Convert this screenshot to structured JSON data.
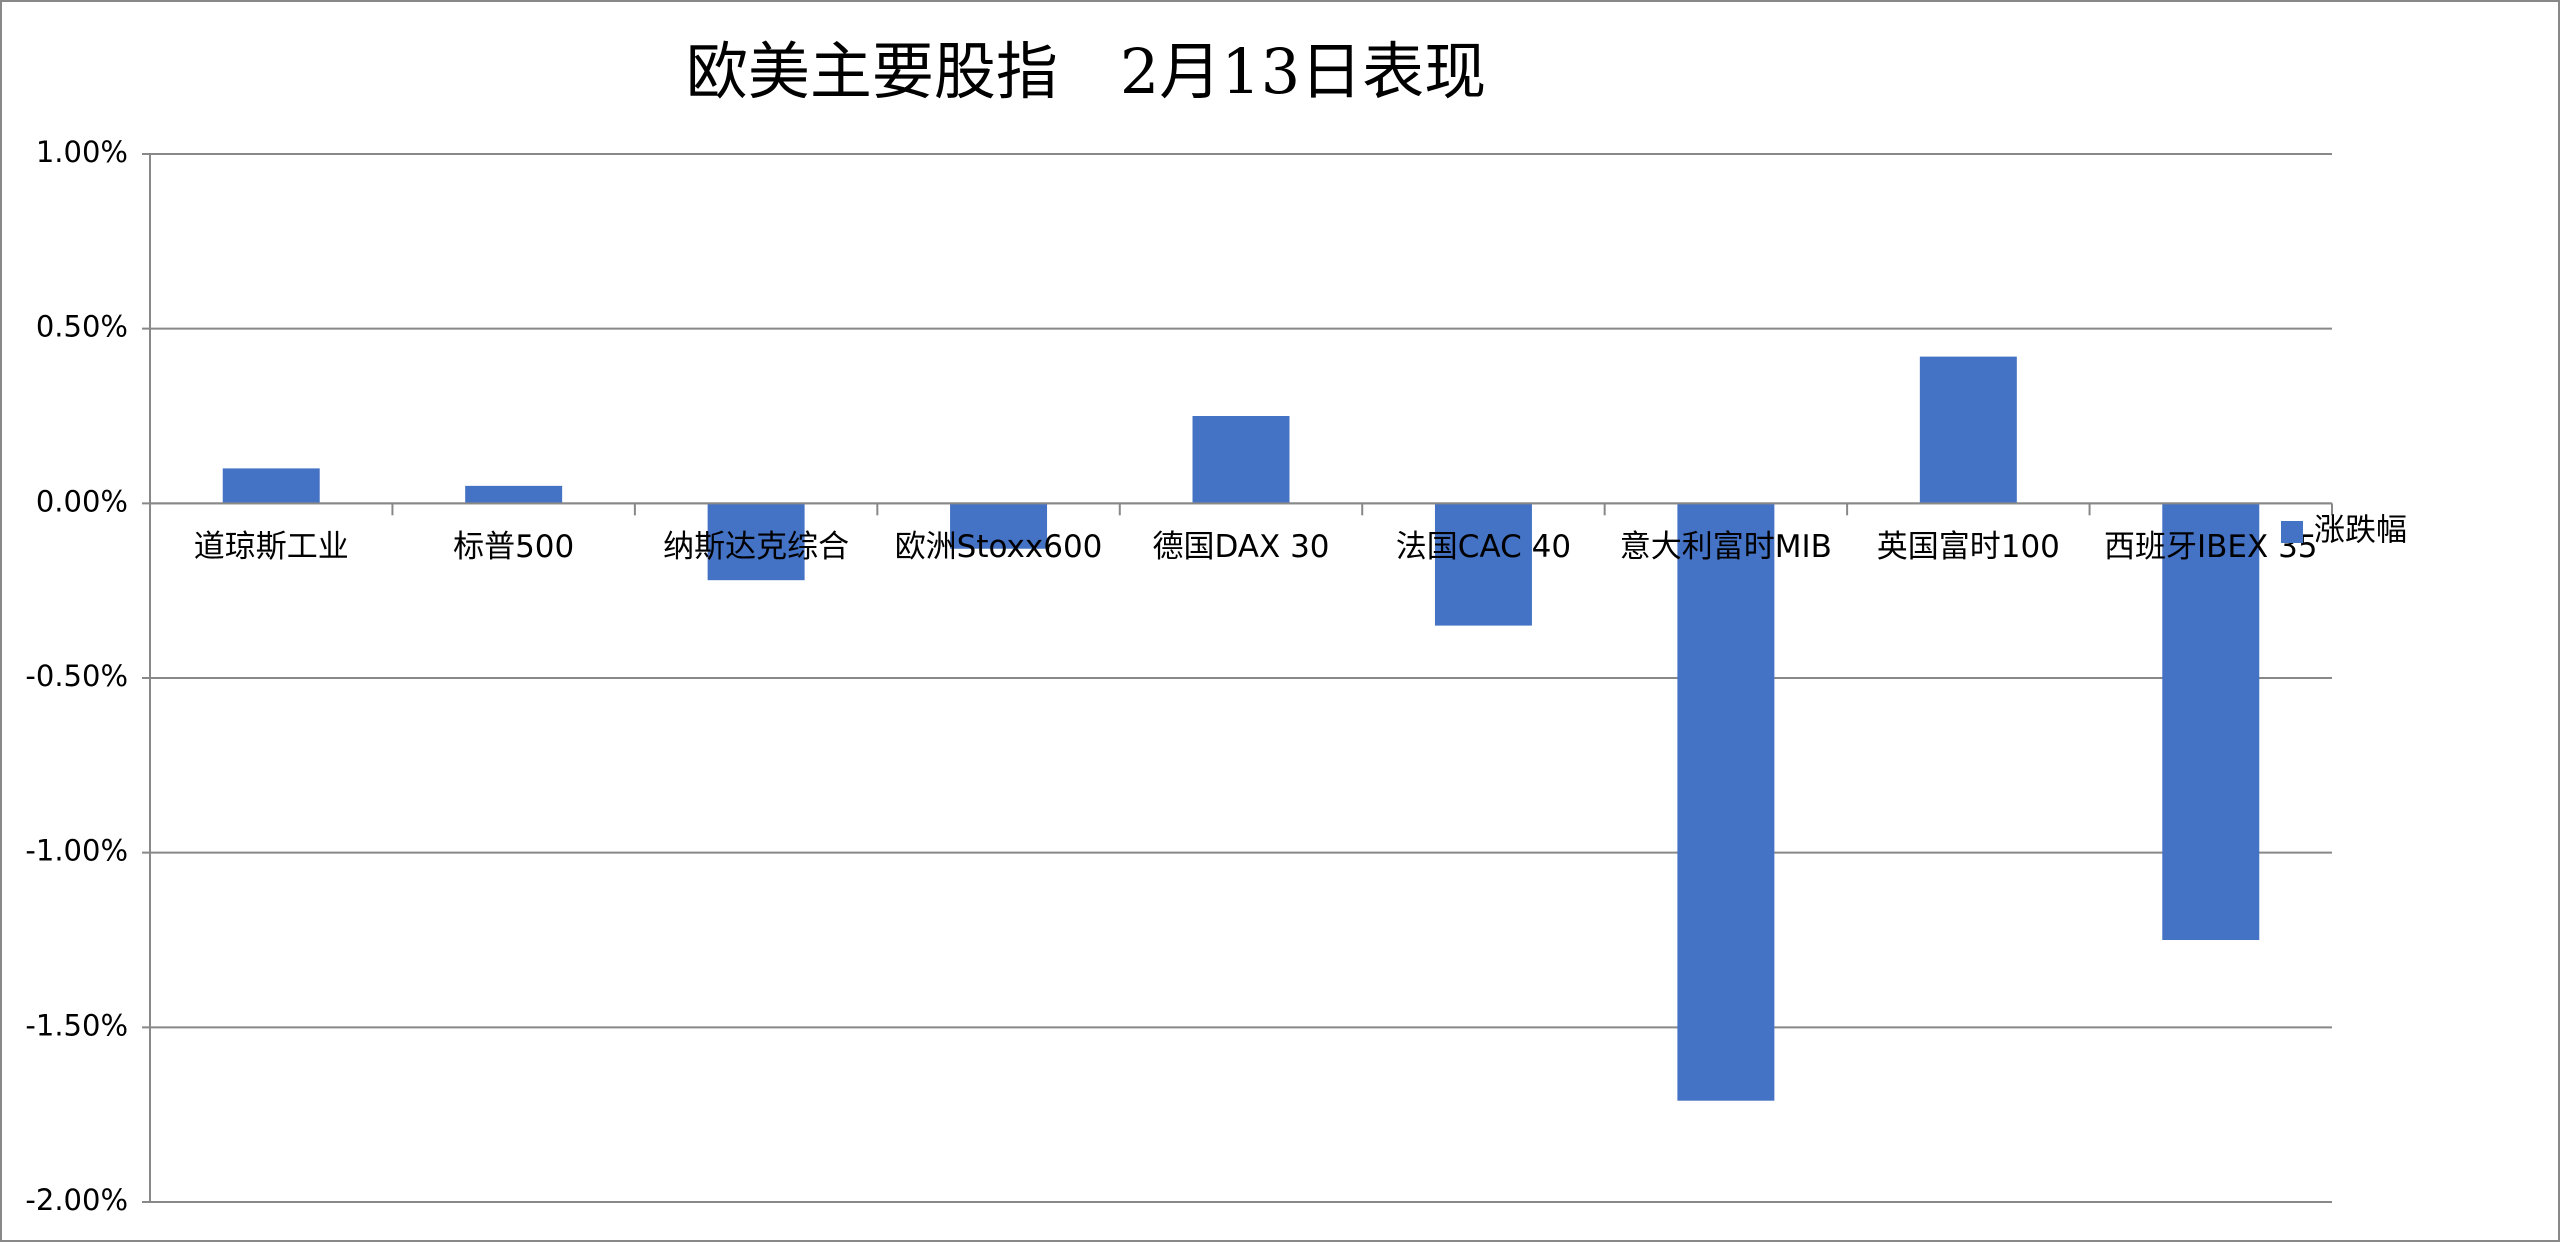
{
  "chart_data": {
    "type": "bar",
    "title": "欧美主要股指　2月13日表现",
    "categories": [
      "道琼斯工业",
      "标普500",
      "纳斯达克综合",
      "欧洲Stoxx600",
      "德国DAX 30",
      "法国CAC 40",
      "意大利富时MIB",
      "英国富时100",
      "西班牙IBEX 35"
    ],
    "series": [
      {
        "name": "涨跌幅",
        "color": "#4472c4",
        "values": [
          0.1,
          0.05,
          -0.22,
          -0.13,
          0.25,
          -0.35,
          -1.71,
          0.42,
          -1.25
        ]
      }
    ],
    "ylim": [
      -2,
      1
    ],
    "yticks": [
      {
        "value": -2,
        "label": "-2.00%"
      },
      {
        "value": -1.5,
        "label": "-1.50%"
      },
      {
        "value": -1,
        "label": "-1.00%"
      },
      {
        "value": -0.5,
        "label": "-0.50%"
      },
      {
        "value": 0,
        "label": "0.00%"
      },
      {
        "value": 0.5,
        "label": "0.50%"
      },
      {
        "value": 1,
        "label": "1.00%"
      }
    ],
    "grid": true,
    "legend": "right"
  }
}
